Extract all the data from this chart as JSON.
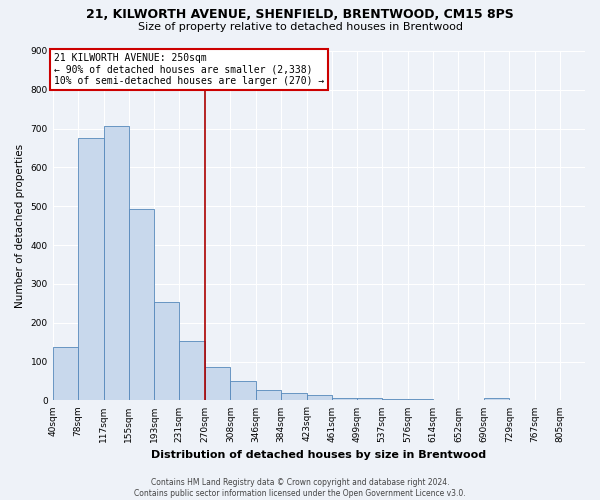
{
  "title": "21, KILWORTH AVENUE, SHENFIELD, BRENTWOOD, CM15 8PS",
  "subtitle": "Size of property relative to detached houses in Brentwood",
  "xlabel": "Distribution of detached houses by size in Brentwood",
  "ylabel": "Number of detached properties",
  "footer_line1": "Contains HM Land Registry data © Crown copyright and database right 2024.",
  "footer_line2": "Contains public sector information licensed under the Open Government Licence v3.0.",
  "bin_labels": [
    "40sqm",
    "78sqm",
    "117sqm",
    "155sqm",
    "193sqm",
    "231sqm",
    "270sqm",
    "308sqm",
    "346sqm",
    "384sqm",
    "423sqm",
    "461sqm",
    "499sqm",
    "537sqm",
    "576sqm",
    "614sqm",
    "652sqm",
    "690sqm",
    "729sqm",
    "767sqm",
    "805sqm"
  ],
  "bar_values": [
    137,
    675,
    706,
    492,
    253,
    152,
    85,
    50,
    28,
    20,
    14,
    7,
    5,
    4,
    3,
    2,
    0,
    5,
    0,
    0,
    0
  ],
  "bar_color": "#c8d8ec",
  "bar_edge_color": "#5588bb",
  "vline_index": 6,
  "vline_color": "#aa0000",
  "annotation_title": "21 KILWORTH AVENUE: 250sqm",
  "annotation_line1": "← 90% of detached houses are smaller (2,338)",
  "annotation_line2": "10% of semi-detached houses are larger (270) →",
  "annotation_box_edge_color": "#cc0000",
  "annotation_box_bg": "#ffffff",
  "ylim": [
    0,
    900
  ],
  "yticks": [
    0,
    100,
    200,
    300,
    400,
    500,
    600,
    700,
    800,
    900
  ],
  "background_color": "#eef2f8",
  "grid_color": "#ffffff",
  "title_fontsize": 9,
  "subtitle_fontsize": 8,
  "ylabel_fontsize": 7.5,
  "xlabel_fontsize": 8,
  "tick_fontsize": 6.5,
  "footer_fontsize": 5.5
}
